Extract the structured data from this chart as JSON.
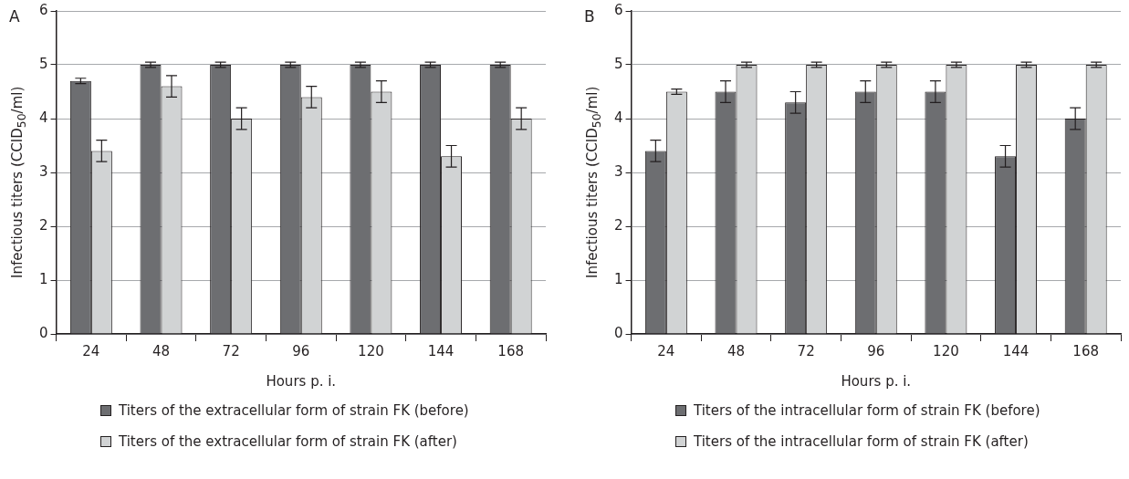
{
  "chart_data": [
    {
      "type": "bar",
      "title": "A",
      "xlabel": "Hours p. i.",
      "ylabel": "Infectious titers (CCID$_{50}$/ml)",
      "categories": [
        "24",
        "48",
        "72",
        "96",
        "120",
        "144",
        "168"
      ],
      "series": [
        {
          "name": "Titers of the extracellular form of strain FK (before)",
          "color": "#6d6e71",
          "values": [
            4.7,
            5,
            5,
            5,
            5,
            5,
            5
          ],
          "errors": [
            0.05,
            0.05,
            0.05,
            0.05,
            0.05,
            0.05,
            0.05
          ]
        },
        {
          "name": "Titers of the extracellular form of strain FK (after)",
          "color": "#d1d3d4",
          "values": [
            3.4,
            4.6,
            4.0,
            4.4,
            4.5,
            3.3,
            4.0
          ],
          "errors": [
            0.2,
            0.2,
            0.2,
            0.2,
            0.2,
            0.2,
            0.2
          ]
        }
      ],
      "ylim": [
        0,
        6
      ],
      "yticks": [
        0,
        1,
        2,
        3,
        4,
        5,
        6
      ],
      "grid": "y",
      "legend": "bottom"
    },
    {
      "type": "bar",
      "title": "B",
      "xlabel": "Hours p. i.",
      "ylabel": "Infectious titers (CCID$_{50}$/ml)",
      "categories": [
        "24",
        "48",
        "72",
        "96",
        "120",
        "144",
        "168"
      ],
      "series": [
        {
          "name": "Titers of the intracellular form of strain FK (before)",
          "color": "#6d6e71",
          "values": [
            3.4,
            4.5,
            4.3,
            4.5,
            4.5,
            3.3,
            4.0
          ],
          "errors": [
            0.2,
            0.2,
            0.2,
            0.2,
            0.2,
            0.2,
            0.2
          ]
        },
        {
          "name": "Titers of the intracellular form of strain FK (after)",
          "color": "#d1d3d4",
          "values": [
            4.5,
            5,
            5,
            5,
            5,
            5,
            5
          ],
          "errors": [
            0.05,
            0.05,
            0.05,
            0.05,
            0.05,
            0.05,
            0.05
          ]
        }
      ],
      "ylim": [
        0,
        6
      ],
      "yticks": [
        0,
        1,
        2,
        3,
        4,
        5,
        6
      ],
      "grid": "y",
      "legend": "bottom"
    }
  ]
}
